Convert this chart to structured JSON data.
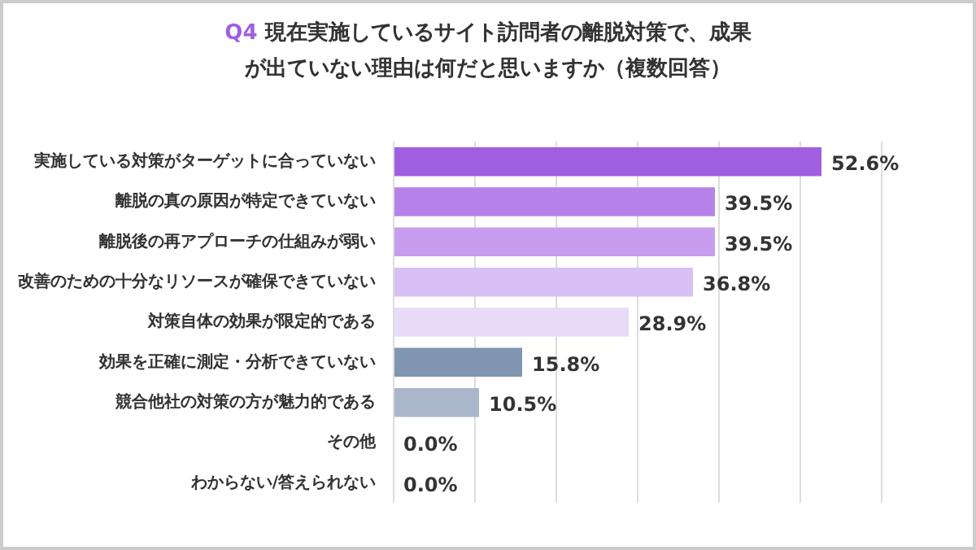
{
  "chart_data": {
    "type": "bar",
    "orientation": "horizontal",
    "title": "Q4 現在実施しているサイト訪問者の離脱対策で、成果が出ていない理由は何だと思いますか（複数回答）",
    "categories": [
      "実施している対策がターゲットに合っていない",
      "離脱の真の原因が特定できていない",
      "離脱後の再アプローチの仕組みが弱い",
      "改善のための十分なリソースが確保できていない",
      "対策自体の効果が限定的である",
      "効果を正確に測定・分析できていない",
      "競合他社の対策の方が魅力的である",
      "その他",
      "わからない/答えられない"
    ],
    "values": [
      52.6,
      39.5,
      39.5,
      36.8,
      28.9,
      15.8,
      10.5,
      0,
      0
    ],
    "colors": [
      "#9f5fe0",
      "#b482e8",
      "#c79df0",
      "#d8bff4",
      "#e8dbf8",
      "#8096b0",
      "#aab6ca",
      "#aab6ca",
      "#aab6ca"
    ],
    "value_labels": [
      "52.6%",
      "39.5%",
      "39.5%",
      "36.8%",
      "28.9%",
      "15.8%",
      "10.5%",
      "0.0%",
      "0.0%"
    ],
    "xlim": [
      0,
      60
    ],
    "xticks": [
      {
        "value": 0,
        "label": null
      },
      {
        "value": 10,
        "label": null
      },
      {
        "value": 20,
        "label": null
      },
      {
        "value": 30,
        "label": null
      },
      {
        "value": 40,
        "label": null
      },
      {
        "value": 50,
        "label": null
      },
      {
        "value": 60,
        "label": null
      }
    ],
    "grid": "x",
    "tick_labels": "y",
    "legend": false
  }
}
